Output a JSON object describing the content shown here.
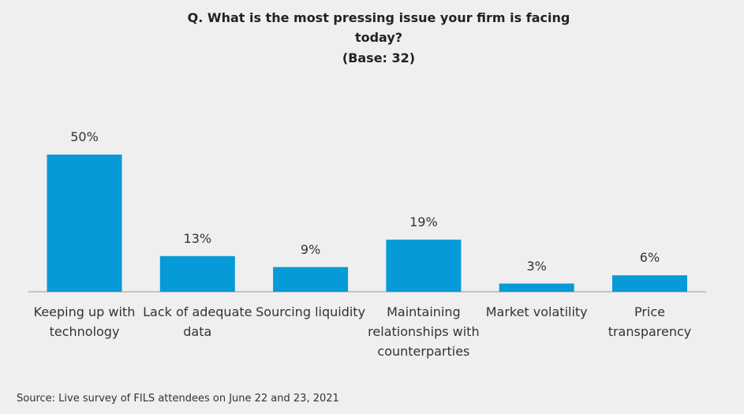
{
  "chart_data": {
    "type": "bar",
    "title": "Q. What is the most pressing issue your firm is facing today?",
    "subtitle": "(Base: 32)",
    "categories": [
      "Keeping up with technology",
      "Lack of adequate data",
      "Sourcing liquidity",
      "Maintaining relationships with counterparties",
      "Market volatility",
      "Price transparency"
    ],
    "values": [
      50,
      13,
      9,
      19,
      3,
      6
    ],
    "value_labels": [
      "50%",
      "13%",
      "9%",
      "19%",
      "3%",
      "6%"
    ],
    "color": "#079ad9",
    "source": "Source: Live survey of FILS attendees on June 22 and 23, 2021"
  }
}
